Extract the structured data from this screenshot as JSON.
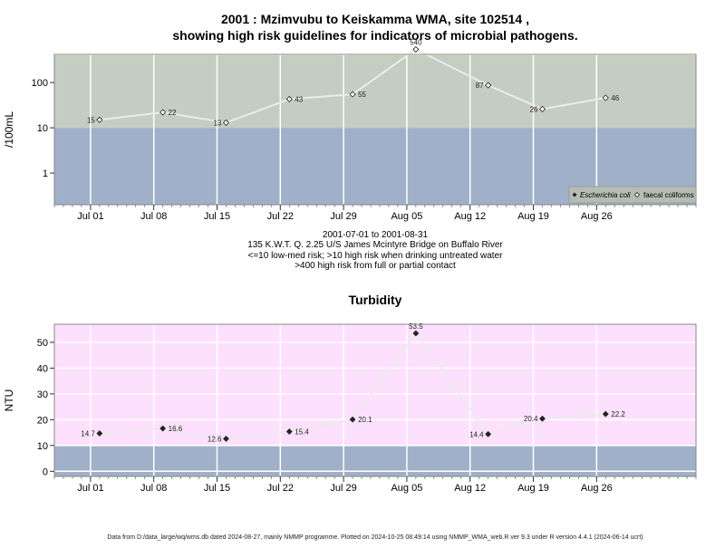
{
  "chart_data": [
    {
      "type": "line",
      "title_line1": "2001 : Mzimvubu to Keiskamma WMA, site 102514 ,",
      "title_line2": "showing high risk guidelines for indicators of microbial pathogens.",
      "ylabel": "/100mL",
      "yscale": "log",
      "ylim": [
        0.2,
        420
      ],
      "yticks": [
        {
          "v": 1,
          "label": "1"
        },
        {
          "v": 10,
          "label": "10"
        },
        {
          "v": 100,
          "label": "100"
        }
      ],
      "xlim": [
        "2001-06-27",
        "2001-09-06"
      ],
      "xticks": [
        {
          "date": "2001-07-01",
          "label": "Jul 01"
        },
        {
          "date": "2001-07-08",
          "label": "Jul 08"
        },
        {
          "date": "2001-07-15",
          "label": "Jul 15"
        },
        {
          "date": "2001-07-22",
          "label": "Jul 22"
        },
        {
          "date": "2001-07-29",
          "label": "Jul 29"
        },
        {
          "date": "2001-08-05",
          "label": "Aug 05"
        },
        {
          "date": "2001-08-12",
          "label": "Aug 12"
        },
        {
          "date": "2001-08-19",
          "label": "Aug 19"
        },
        {
          "date": "2001-08-26",
          "label": "Aug 26"
        }
      ],
      "bands": [
        {
          "from": 0.2,
          "to": 10,
          "color": "#a0b0c8"
        },
        {
          "from": 10,
          "to": 400,
          "color": "#c4cdc2"
        },
        {
          "from": 400,
          "to": 420,
          "color": "#fcf8c2"
        }
      ],
      "series": [
        {
          "name": "faecal coliforms",
          "marker": "open-diamond",
          "points": [
            {
              "date": "2001-07-02",
              "value": 15,
              "label": "15"
            },
            {
              "date": "2001-07-09",
              "value": 22,
              "label": "22"
            },
            {
              "date": "2001-07-16",
              "value": 13,
              "label": "13"
            },
            {
              "date": "2001-07-23",
              "value": 43,
              "label": "43"
            },
            {
              "date": "2001-07-30",
              "value": 55,
              "label": "55"
            },
            {
              "date": "2001-08-06",
              "value": 540,
              "label": "540"
            },
            {
              "date": "2001-08-14",
              "value": 87,
              "label": "87"
            },
            {
              "date": "2001-08-20",
              "value": 26,
              "label": "26"
            },
            {
              "date": "2001-08-27",
              "value": 46,
              "label": "46"
            }
          ]
        }
      ],
      "legend": {
        "position": "bottom-right",
        "entries": [
          {
            "label": "Escherichia coli",
            "marker": "filled-diamond",
            "italic": true
          },
          {
            "label": "faecal coliforms",
            "marker": "open-diamond",
            "italic": false
          }
        ]
      },
      "info_lines": [
        "2001-07-01 to 2001-08-31",
        "135 K.W.T. Q. 2.25 U/S James Mcintyre Bridge on Buffalo River",
        "<=10 low-med risk; >10 high risk when drinking untreated water",
        ">400 high risk from full or partial contact"
      ]
    },
    {
      "type": "line",
      "title": "Turbidity",
      "ylabel": "NTU",
      "ylim": [
        -2,
        57
      ],
      "yticks": [
        0,
        10,
        20,
        30,
        40,
        50
      ],
      "xlim": [
        "2001-06-27",
        "2001-09-06"
      ],
      "bands": [
        {
          "from": -2,
          "to": 10,
          "color": "#a0b0c8"
        },
        {
          "from": 10,
          "to": 57,
          "color": "#fde0fd"
        }
      ],
      "series": [
        {
          "name": "",
          "marker": "filled-diamond",
          "points": [
            {
              "date": "2001-07-02",
              "value": 14.7,
              "label": "14.7"
            },
            {
              "date": "2001-07-09",
              "value": 16.6,
              "label": "16.6"
            },
            {
              "date": "2001-07-16",
              "value": 12.6,
              "label": "12.6"
            },
            {
              "date": "2001-07-23",
              "value": 15.4,
              "label": "15.4"
            },
            {
              "date": "2001-07-30",
              "value": 20.1,
              "label": "20.1"
            },
            {
              "date": "2001-08-06",
              "value": 53.5,
              "label": "53.5"
            },
            {
              "date": "2001-08-14",
              "value": 14.4,
              "label": "14.4"
            },
            {
              "date": "2001-08-20",
              "value": 20.4,
              "label": "20.4"
            },
            {
              "date": "2001-08-27",
              "value": 22.2,
              "label": "22.2"
            }
          ]
        }
      ]
    }
  ],
  "footer": "Data from D:/data_large/wq/wms.db dated 2024-08-27, mainly NMMP programme. Plotted on 2024-10-25 08:49:14 using NMMP_WMA_web.R ver 9.3 under R version 4.4.1 (2024-06-14 ucrt)"
}
